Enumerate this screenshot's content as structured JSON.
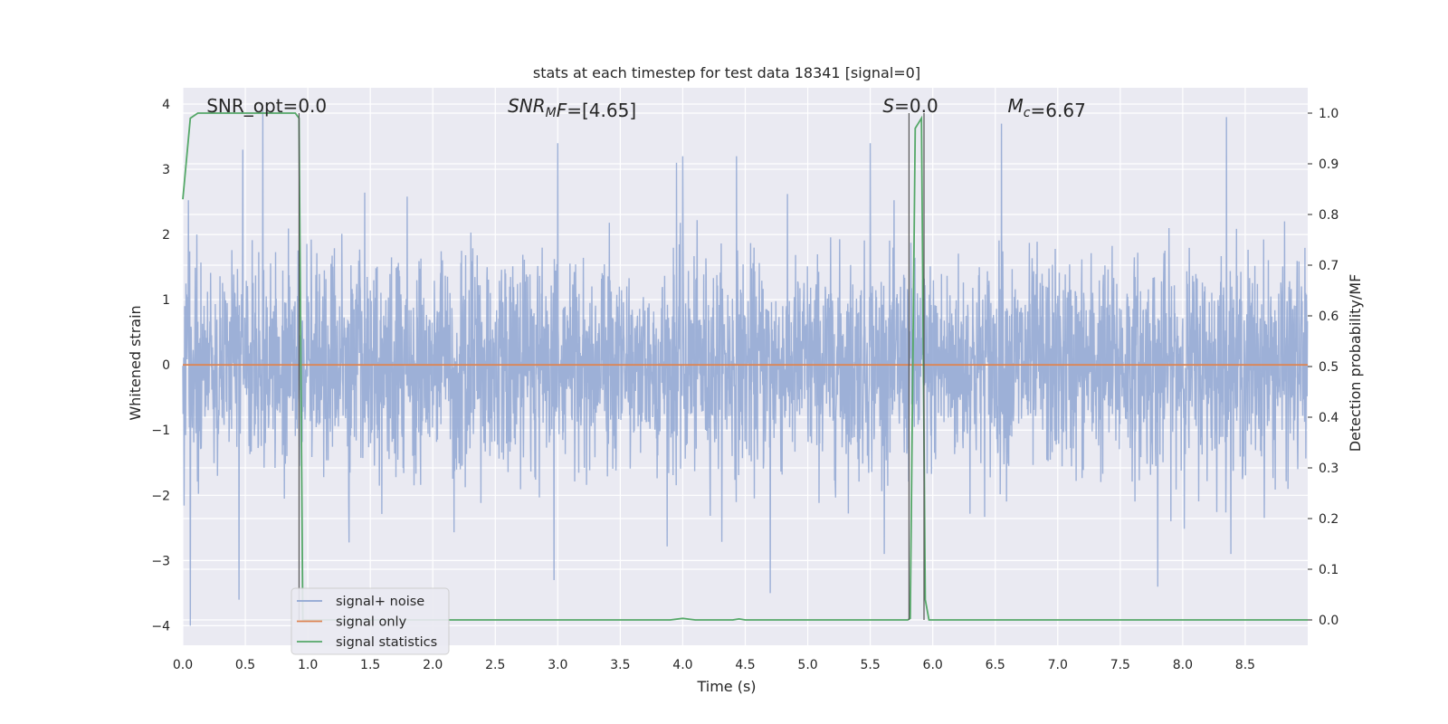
{
  "chart_data": {
    "type": "line",
    "title": "stats at each timestep for test data 18341 [signal=0]",
    "xlabel": "Time (s)",
    "ylabel": "Whitened strain",
    "ylabel_right": "Detection probability/MF",
    "xlim": [
      0.0,
      9.0
    ],
    "ylim": [
      -4.3,
      4.25
    ],
    "ylim_right": [
      -0.05,
      1.05
    ],
    "x_ticks": [
      "0.0",
      "0.5",
      "1.0",
      "1.5",
      "2.0",
      "2.5",
      "3.0",
      "3.5",
      "4.0",
      "4.5",
      "5.0",
      "5.5",
      "6.0",
      "6.5",
      "7.0",
      "7.5",
      "8.0",
      "8.5"
    ],
    "y_ticks": [
      "4",
      "3",
      "2",
      "1",
      "0",
      "−1",
      "−2",
      "−3",
      "−4"
    ],
    "y_ticks_right": [
      "1.0",
      "0.9",
      "0.8",
      "0.7",
      "0.6",
      "0.5",
      "0.4",
      "0.3",
      "0.2",
      "0.1",
      "0.0"
    ],
    "grid": true,
    "legend_position": "lower-left",
    "annotations": [
      {
        "x": 0.19,
        "text": "SNR_opt=0.0"
      },
      {
        "x": 2.6,
        "text_italic": "SNR",
        "sub": "M",
        "text_italic2": "F",
        "text": "=[4.65]"
      },
      {
        "x": 5.6,
        "text_italic": "S",
        "text": "=0.0"
      },
      {
        "x": 6.6,
        "text_italic": "M",
        "sub": "c",
        "text": "=6.67"
      }
    ],
    "series": [
      {
        "name": "signal+ noise",
        "color": "#8fa6d2",
        "sampling_rate_hz": 2048,
        "typical_amplitude_range": [
          -1.6,
          1.5
        ],
        "notable_peaks": [
          {
            "x": 0.06,
            "y": -4.0
          },
          {
            "x": 0.45,
            "y": -3.6
          },
          {
            "x": 0.48,
            "y": 3.3
          },
          {
            "x": 0.64,
            "y": 3.9
          },
          {
            "x": 2.97,
            "y": -3.3
          },
          {
            "x": 3.0,
            "y": 3.4
          },
          {
            "x": 3.95,
            "y": 3.1
          },
          {
            "x": 4.0,
            "y": 3.2
          },
          {
            "x": 4.43,
            "y": 3.2
          },
          {
            "x": 4.7,
            "y": -3.5
          },
          {
            "x": 5.5,
            "y": 3.4
          },
          {
            "x": 6.55,
            "y": 3.7
          },
          {
            "x": 7.8,
            "y": -3.4
          },
          {
            "x": 8.35,
            "y": 3.8
          }
        ]
      },
      {
        "name": "signal only",
        "color": "#dd8452",
        "x": [
          0.0,
          9.0
        ],
        "y": [
          0.0,
          0.0
        ]
      },
      {
        "name": "signal statistics",
        "color": "#55a868",
        "axis": "right",
        "x": [
          0.0,
          0.06,
          0.12,
          0.5,
          0.9,
          0.93,
          0.96,
          1.0,
          1.5,
          2.0,
          3.0,
          3.9,
          4.0,
          4.1,
          4.4,
          4.45,
          4.5,
          5.0,
          5.5,
          5.8,
          5.82,
          5.86,
          5.91,
          5.94,
          5.97,
          6.05,
          6.5,
          7.0,
          8.0,
          9.0
        ],
        "y": [
          0.83,
          0.99,
          1.0,
          1.0,
          1.0,
          0.99,
          0.0,
          0.0,
          0.0,
          0.0,
          0.0,
          0.0,
          0.003,
          0.0,
          0.0,
          0.002,
          0.0,
          0.0,
          0.0,
          0.0,
          0.003,
          0.97,
          0.99,
          0.04,
          0.0,
          0.0,
          0.0,
          0.0,
          0.0,
          0.0
        ]
      }
    ],
    "vertical_markers": [
      {
        "x": 0.93,
        "color": "#555555"
      },
      {
        "x": 5.81,
        "color": "#555555"
      },
      {
        "x": 5.93,
        "color": "#555555"
      }
    ],
    "colors": {
      "plot_background": "#eaeaf2",
      "grid": "#ffffff",
      "text": "#262626"
    }
  }
}
